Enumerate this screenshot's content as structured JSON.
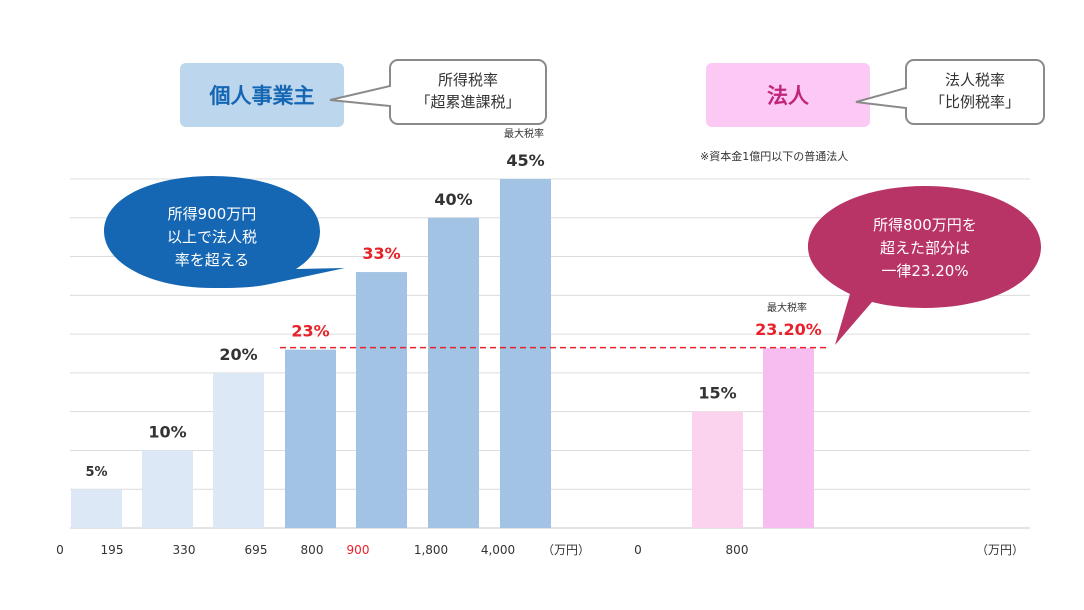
{
  "chart_data": {
    "type": "bar",
    "title": "",
    "xlabel": "",
    "ylabel": "",
    "ylim": [
      0,
      45
    ],
    "grid": true,
    "individual": {
      "heading": "個人事業主",
      "callout": [
        "所得税率",
        "「超累進課税」"
      ],
      "x_ticks": [
        "0",
        "195",
        "330",
        "695",
        "800",
        "900",
        "1,800",
        "4,000"
      ],
      "x_unit": "（万円）",
      "values": [
        5,
        10,
        20,
        23,
        33,
        40,
        45
      ],
      "value_labels": [
        "5%",
        "10%",
        "20%",
        "23%",
        "33%",
        "40%",
        "45%"
      ],
      "max_rate_label": "最大税率",
      "annotation": [
        "所得900万円",
        "以上で法人税",
        "率を超える"
      ]
    },
    "corporate": {
      "heading": "法人",
      "callout": [
        "法人税率",
        "「比例税率」"
      ],
      "note": "※資本金1億円以下の普通法人",
      "x_ticks": [
        "0",
        "800"
      ],
      "x_unit": "（万円）",
      "values": [
        15,
        23.2
      ],
      "value_labels": [
        "15%",
        "23.20%"
      ],
      "max_rate_label": "最大税率",
      "annotation": [
        "所得800万円を",
        "超えた部分は",
        "一律23.20%"
      ]
    },
    "colors": {
      "individual_light": "#dce8f5",
      "individual_mid": "#a3c3e4",
      "individual_header": "#bcd6ee",
      "corporate_light": "#fbd3ee",
      "corporate_mid": "#f8bdf0",
      "corporate_header": "#fbc9f3",
      "highlight_red": "#e8222a",
      "blue_bubble": "#1567b3",
      "crimson_bubble": "#b83366"
    }
  }
}
